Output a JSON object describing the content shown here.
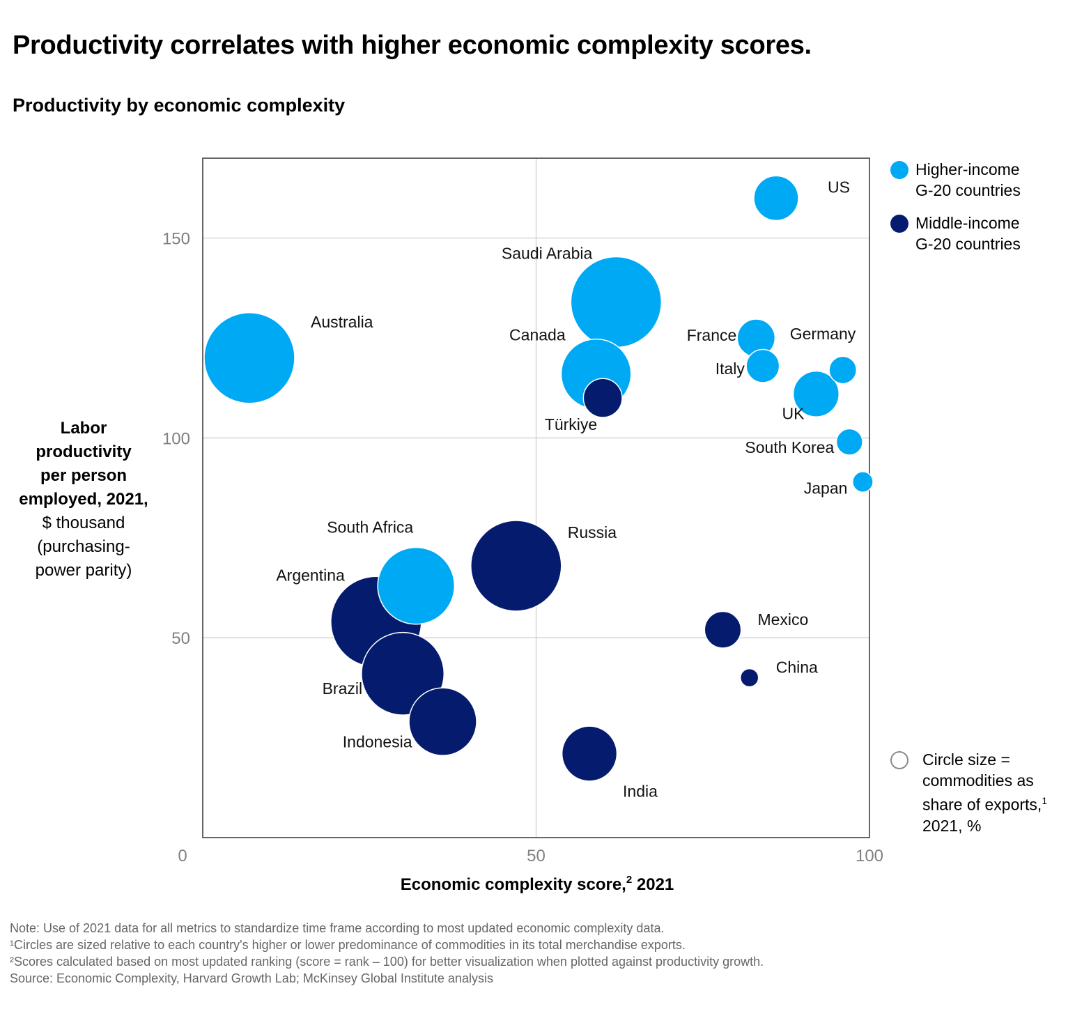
{
  "title": "Productivity correlates with higher economic complexity scores.",
  "subtitle": "Productivity by economic complexity",
  "legend": {
    "higher_line1": "Higher-income",
    "higher_line2": "G-20 countries",
    "middle_line1": "Middle-income",
    "middle_line2": "G-20 countries",
    "size_line1": "Circle size =",
    "size_line2": "commodities as",
    "size_line3": "share of exports,",
    "size_line3_sup": "1",
    "size_line4": "2021, %"
  },
  "colors": {
    "higher": "#00a9f4",
    "middle": "#051c6e",
    "grid": "#cccccc",
    "axis": "#333333",
    "tick": "#808080"
  },
  "y_axis_label": {
    "bold1": "Labor",
    "bold2": "productivity",
    "bold3": "per person",
    "bold4": "employed, 2021,",
    "normal1": "$ thousand",
    "normal2": "(purchasing-",
    "normal3": "power parity)"
  },
  "notes": [
    "Note: Use of 2021 data for all metrics to standardize time frame according to most updated economic complexity data.",
    "¹Circles are sized relative to each country's higher or lower predominance of commodities in its total merchandise exports.",
    "²Scores calculated based on most updated ranking (score = rank – 100) for better visualization when plotted against productivity growth.",
    "Source: Economic Complexity, Harvard Growth Lab; McKinsey Global Institute analysis"
  ],
  "chart_data": {
    "type": "scatter",
    "xlabel": "Economic complexity score,",
    "xlabel_sup": "2",
    "xlabel_suffix": " 2021",
    "xlim": [
      0,
      100
    ],
    "ylim": [
      0,
      170
    ],
    "x_ticks": [
      0,
      50,
      100
    ],
    "y_ticks": [
      50,
      100,
      150
    ],
    "grid": true,
    "legend_position": "right",
    "series": [
      {
        "name": "Higher-income G-20 countries",
        "points": [
          {
            "label": "US",
            "x": 86,
            "y": 160,
            "size": 0.4
          },
          {
            "label": "Saudi Arabia",
            "x": 62,
            "y": 134,
            "size": 0.8
          },
          {
            "label": "Australia",
            "x": 7,
            "y": 120,
            "size": 0.8
          },
          {
            "label": "France",
            "x": 83,
            "y": 125,
            "size": 0.34
          },
          {
            "label": "Germany",
            "x": 96,
            "y": 117,
            "size": 0.25
          },
          {
            "label": "Canada",
            "x": 59,
            "y": 116,
            "size": 0.62
          },
          {
            "label": "Italy",
            "x": 84,
            "y": 118,
            "size": 0.3
          },
          {
            "label": "UK",
            "x": 92,
            "y": 111,
            "size": 0.41
          },
          {
            "label": "South Korea",
            "x": 97,
            "y": 99,
            "size": 0.24
          },
          {
            "label": "Japan",
            "x": 99,
            "y": 89,
            "size": 0.19
          },
          {
            "label": "South Africa",
            "x": 32,
            "y": 63,
            "size": 0.68
          }
        ]
      },
      {
        "name": "Middle-income G-20 countries",
        "points": [
          {
            "label": "Türkiye",
            "x": 60,
            "y": 110,
            "size": 0.35
          },
          {
            "label": "Russia",
            "x": 47,
            "y": 68,
            "size": 0.8
          },
          {
            "label": "Argentina",
            "x": 26,
            "y": 54,
            "size": 0.8
          },
          {
            "label": "Brazil",
            "x": 30,
            "y": 41,
            "size": 0.73
          },
          {
            "label": "Indonesia",
            "x": 36,
            "y": 29,
            "size": 0.6
          },
          {
            "label": "India",
            "x": 58,
            "y": 21,
            "size": 0.49
          },
          {
            "label": "Mexico",
            "x": 78,
            "y": 52,
            "size": 0.33
          },
          {
            "label": "China",
            "x": 82,
            "y": 40,
            "size": 0.17
          }
        ]
      }
    ]
  }
}
